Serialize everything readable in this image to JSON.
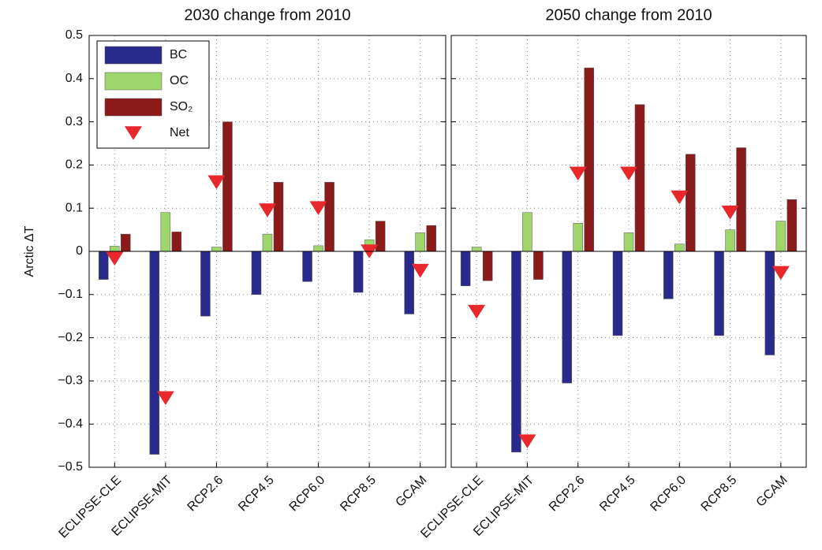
{
  "chart_data": [
    {
      "type": "bar",
      "title": "2030 change from 2010",
      "ylabel": "Arctic ΔT",
      "categories": [
        "ECLIPSE-CLE",
        "ECLIPSE-MIT",
        "RCP2.6",
        "RCP4.5",
        "RCP6.0",
        "RCP8.5",
        "GCAM"
      ],
      "series": [
        {
          "name": "BC",
          "color": "#2a2a8c",
          "values": [
            -0.065,
            -0.47,
            -0.15,
            -0.1,
            -0.07,
            -0.095,
            -0.145
          ]
        },
        {
          "name": "OC",
          "color": "#9fd66b",
          "values": [
            0.012,
            0.09,
            0.01,
            0.04,
            0.013,
            0.027,
            0.043
          ]
        },
        {
          "name": "SO₂",
          "color": "#8b1a1a",
          "values": [
            0.04,
            0.045,
            0.3,
            0.16,
            0.16,
            0.07,
            0.06
          ]
        },
        {
          "name": "Net",
          "color": "#e8282a",
          "marker": "triangle",
          "values": [
            -0.017,
            -0.34,
            0.16,
            0.095,
            0.1,
            0.0,
            -0.045
          ]
        }
      ],
      "ylim": [
        -0.5,
        0.5
      ],
      "yticks": [
        {
          "value": -0.5,
          "label": "−0.5"
        },
        {
          "value": -0.4,
          "label": "−0.4"
        },
        {
          "value": -0.3,
          "label": "−0.3"
        },
        {
          "value": -0.2,
          "label": "−0.2"
        },
        {
          "value": -0.1,
          "label": "−0.1"
        },
        0,
        0.1,
        0.2,
        0.3,
        0.4,
        0.5
      ],
      "ytick_labels": true,
      "grid": true,
      "legend": "upper left"
    },
    {
      "type": "bar",
      "title": "2050 change from 2010",
      "categories": [
        "ECLIPSE-CLE",
        "ECLIPSE-MIT",
        "RCP2.6",
        "RCP4.5",
        "RCP6.0",
        "RCP8.5",
        "GCAM"
      ],
      "series": [
        {
          "name": "BC",
          "color": "#2a2a8c",
          "values": [
            -0.08,
            -0.465,
            -0.305,
            -0.195,
            -0.11,
            -0.195,
            -0.24
          ]
        },
        {
          "name": "OC",
          "color": "#9fd66b",
          "values": [
            0.01,
            0.09,
            0.065,
            0.043,
            0.017,
            0.05,
            0.07
          ]
        },
        {
          "name": "SO₂",
          "color": "#8b1a1a",
          "values": [
            -0.068,
            -0.065,
            0.425,
            0.34,
            0.225,
            0.24,
            0.12
          ]
        },
        {
          "name": "Net",
          "color": "#e8282a",
          "marker": "triangle",
          "values": [
            -0.14,
            -0.44,
            0.18,
            0.18,
            0.125,
            0.09,
            -0.05
          ]
        }
      ],
      "ylim": [
        -0.5,
        0.5
      ],
      "yticks": [
        -0.5,
        -0.4,
        -0.3,
        -0.2,
        -0.1,
        0,
        0.1,
        0.2,
        0.3,
        0.4,
        0.5
      ],
      "ytick_labels": false,
      "grid": true
    }
  ]
}
